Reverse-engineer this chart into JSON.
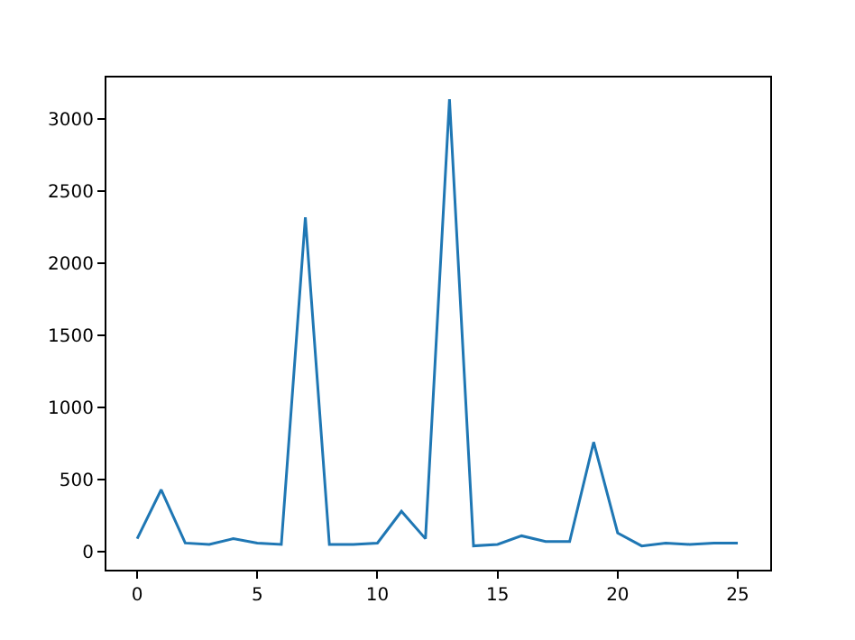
{
  "chart_data": {
    "type": "line",
    "x": [
      0,
      1,
      2,
      3,
      4,
      5,
      6,
      7,
      8,
      9,
      10,
      11,
      12,
      13,
      14,
      15,
      16,
      17,
      18,
      19,
      20,
      21,
      22,
      23,
      24,
      25
    ],
    "series": [
      {
        "color": "#1f77b4",
        "values": [
          90,
          430,
          60,
          50,
          90,
          60,
          50,
          2320,
          50,
          50,
          60,
          280,
          90,
          3140,
          40,
          50,
          110,
          70,
          70,
          760,
          130,
          40,
          60,
          50,
          60,
          60
        ]
      }
    ],
    "xlim": [
      -1.28,
      26.35
    ],
    "xticks": [
      0,
      5,
      10,
      15,
      20,
      25
    ],
    "ylim": [
      -125,
      3290
    ],
    "yticks": [
      0,
      500,
      1000,
      1500,
      2000,
      2500,
      3000
    ],
    "grid": false,
    "marker": "none",
    "line_style": "solid"
  }
}
